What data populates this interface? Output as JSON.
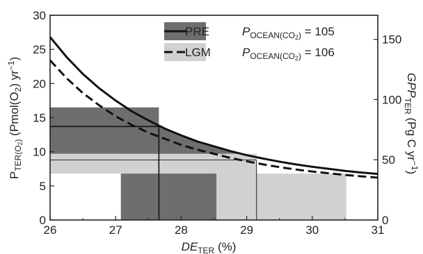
{
  "chart_data": {
    "type": "line",
    "xlabel": {
      "main": "DE",
      "sub": "TER",
      "unit": " (%)"
    },
    "ylabel_left": {
      "main": "P",
      "sub": "TER(O",
      "sub2": "2",
      "sub3": ")",
      "rest": " (Pmol(O",
      "rest_sub": "2",
      "rest_tail": ") yr",
      "rest_sup": "−1",
      "rest_end": ")"
    },
    "ylabel_right": {
      "main": "GPP",
      "sub": "TER",
      "rest": " (Pg C yr",
      "rest_sup": "−1",
      "rest_end": ")"
    },
    "xlim": [
      26,
      31
    ],
    "ylim_left": [
      0,
      30
    ],
    "ylim_right": [
      0,
      170
    ],
    "x_ticks": [
      "26",
      "27",
      "28",
      "29",
      "30",
      "31"
    ],
    "y_left_ticks": [
      "0",
      "5",
      "10",
      "15",
      "20",
      "25",
      "30"
    ],
    "y_right_ticks": [
      "0",
      "50",
      "100",
      "150"
    ],
    "x_tick_values": [
      26,
      27,
      28,
      29,
      30,
      31
    ],
    "y_left_tick_values": [
      0,
      5,
      10,
      15,
      20,
      25,
      30
    ],
    "y_right_tick_values": [
      0,
      50,
      100,
      150
    ],
    "series": [
      {
        "name": "PRE",
        "style": "solid",
        "color": "#111111",
        "x": [
          26.0,
          26.25,
          26.5,
          26.75,
          27.0,
          27.25,
          27.5,
          27.75,
          28.0,
          28.25,
          28.5,
          28.75,
          29.0,
          29.25,
          29.5,
          29.75,
          30.0,
          30.25,
          30.5,
          30.75,
          31.0
        ],
        "y": [
          26.8,
          23.9,
          21.4,
          19.3,
          17.5,
          15.9,
          14.6,
          13.4,
          12.4,
          11.5,
          10.8,
          10.1,
          9.5,
          9.0,
          8.55,
          8.15,
          7.8,
          7.5,
          7.2,
          6.95,
          6.75
        ]
      },
      {
        "name": "LGM",
        "style": "dashed",
        "color": "#111111",
        "x": [
          26.0,
          26.25,
          26.5,
          26.75,
          27.0,
          27.25,
          27.5,
          27.75,
          28.0,
          28.25,
          28.5,
          28.75,
          29.0,
          29.25,
          29.5,
          29.75,
          30.0,
          30.25,
          30.5,
          30.75,
          31.0
        ],
        "y": [
          23.4,
          20.8,
          18.6,
          16.8,
          15.2,
          13.9,
          12.8,
          11.9,
          11.0,
          10.3,
          9.7,
          9.1,
          8.6,
          8.15,
          7.75,
          7.4,
          7.1,
          6.85,
          6.6,
          6.4,
          6.2
        ]
      }
    ],
    "regions": [
      {
        "name": "PRE-horizontal-band",
        "color": "#6e6e70",
        "x0": 26.0,
        "x1": 27.66,
        "y0": 9.7,
        "y1": 16.5
      },
      {
        "name": "PRE-vertical-band",
        "color": "#6e6e70",
        "x0": 27.08,
        "x1": 28.54,
        "y0": 0,
        "y1": 9.7
      },
      {
        "name": "PRE-curve-fill",
        "color": "#6e6e70",
        "curve": "PRE",
        "x0": 27.66,
        "x1": 29.55,
        "y0": 9.7
      },
      {
        "name": "LGM-horizontal-band",
        "color": "#d0d1d3",
        "x0": 26.0,
        "x1": 29.15,
        "y0": 6.8,
        "y1": 9.7
      },
      {
        "name": "LGM-vertical-band",
        "color": "#d0d1d3",
        "x0": 28.54,
        "x1": 30.52,
        "y0": 0,
        "y1": 6.8
      }
    ],
    "reference_lines": [
      {
        "name": "PRE-h-line",
        "x0": 26.0,
        "x1": 27.66,
        "y0": 13.7,
        "y1": 13.7,
        "color": "#111111",
        "width": 1.6
      },
      {
        "name": "PRE-v-line",
        "x0": 27.66,
        "x1": 27.66,
        "y0": 0,
        "y1": 13.7,
        "color": "#111111",
        "width": 1.6
      },
      {
        "name": "LGM-h-line",
        "x0": 26.0,
        "x1": 29.15,
        "y0": 8.8,
        "y1": 8.8,
        "color": "#111111",
        "width": 0.9
      },
      {
        "name": "LGM-v-line",
        "x0": 29.15,
        "x1": 29.15,
        "y0": 0,
        "y1": 8.8,
        "color": "#111111",
        "width": 0.9
      }
    ],
    "legend": {
      "placement": "top-center",
      "entries": [
        {
          "label": "PRE",
          "swatch": "#6e6e70",
          "line": "solid",
          "annotation": {
            "main": "P",
            "sub": "OCEAN(CO",
            "sub2": "2",
            "sub3": ")",
            "eq": " = 105"
          }
        },
        {
          "label": "LGM",
          "swatch": "#d0d1d3",
          "line": "dashed",
          "annotation": {
            "main": "P",
            "sub": "OCEAN(CO",
            "sub2": "2",
            "sub3": ")",
            "eq": " = 106"
          }
        }
      ]
    }
  }
}
